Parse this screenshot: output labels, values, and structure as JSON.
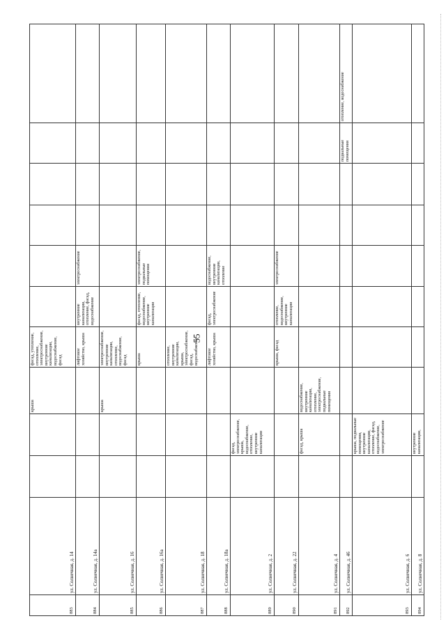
{
  "page_number": "55",
  "rows": [
    {
      "num": "883",
      "address": "ул. Солнечная, д. 14",
      "cells": [
        "",
        "",
        "крыша",
        "фасад, утепление, отопление, электроснабжение, внутренние канализации, водоснабжение, фасад",
        "",
        "",
        "",
        "",
        "",
        ""
      ]
    },
    {
      "num": "884",
      "address": "ул. Солнечная, д. 14а",
      "cells": [
        "",
        "",
        "",
        "лифтовое хозяйство, крыша",
        "внутренние канализации, отопление, фасад, водоснабжение",
        "электроснабжение",
        "",
        "",
        "",
        ""
      ]
    },
    {
      "num": "885",
      "address": "ул. Солнечная, д. 16",
      "cells": [
        "",
        "",
        "крыша",
        "электроснабжение, внутренние канализации, отопление, водоснабжение, фасад",
        "",
        "",
        "",
        "",
        "",
        ""
      ]
    },
    {
      "num": "886",
      "address": "ул. Солнечная, д. 16а",
      "cells": [
        "",
        "",
        "",
        "крыша",
        "фасад, отопление, водоснабжение, внутренние канализации",
        "электроснабжение, подвальные помещения",
        "",
        "",
        "",
        ""
      ]
    },
    {
      "num": "887",
      "address": "ул. Солнечная, д. 18",
      "cells": [
        "",
        "",
        "",
        "отопление, внутренние канализации, крыша, электроснабжение, фасад, водоснабжение",
        "",
        "",
        "",
        "",
        "",
        ""
      ]
    },
    {
      "num": "888",
      "address": "ул. Солнечная, д. 18а",
      "cells": [
        "",
        "",
        "",
        "лифтовое хозяйство, крыша",
        "фасад, электроснабжение",
        "водоснабжение, внутренние канализации, отопление",
        "",
        "",
        "",
        ""
      ]
    },
    {
      "num": "889",
      "address": "ул. Солнечная, д. 2",
      "cells": [
        "",
        "фасад, электроснабжение, крыша, водоснабжение, отопление, внутренние канализации",
        "",
        "",
        "",
        "",
        "",
        "",
        "",
        ""
      ]
    },
    {
      "num": "890",
      "address": "ул. Солнечная, д. 22",
      "cells": [
        "",
        "",
        "",
        "крыша, фасад",
        "отопление, водоснабжение, внутренние канализации",
        "электроснабжение",
        "",
        "",
        "",
        ""
      ]
    },
    {
      "num": "891",
      "address": "ул. Солнечная, д. 4",
      "cells": [
        "",
        "фасад, крыша",
        "водоснабжение, внутренние канализации, отопление, электроснабжение, подвальные помещения",
        "",
        "",
        "",
        "",
        "",
        "",
        ""
      ]
    },
    {
      "num": "892",
      "address": "ул. Солнечная, д. 46",
      "cells": [
        "",
        "",
        "",
        "",
        "",
        "",
        "",
        "",
        "подвальные помещения",
        "отопление, водоснабжение"
      ]
    },
    {
      "num": "893",
      "address": "ул. Солнечная, д. 6",
      "cells": [
        "",
        "крыша, подвальные помещения, внутренние канализации, отопление, фасад, водоснабжение, электроснабжение",
        "",
        "",
        "",
        "",
        "",
        "",
        "",
        ""
      ]
    },
    {
      "num": "894",
      "address": "ул. Солнечная, д. 8",
      "cells": [
        "",
        "внутренние канализации,",
        "",
        "",
        "",
        "",
        "",
        "",
        "",
        ""
      ]
    }
  ]
}
